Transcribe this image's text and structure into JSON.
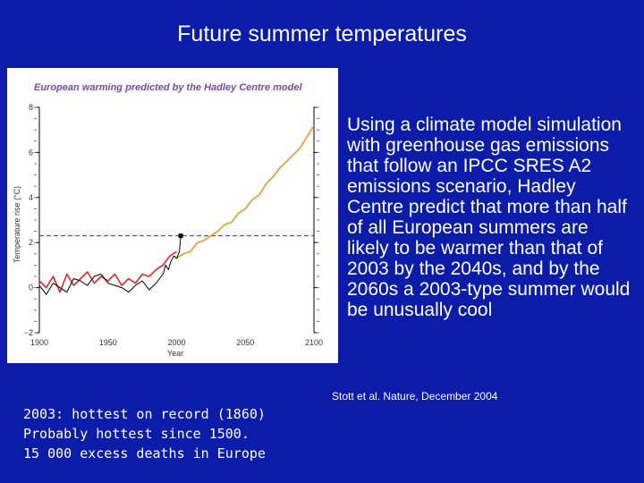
{
  "slide": {
    "title": "Future summer temperatures",
    "body_text": "Using a climate model simulation with greenhouse gas emissions that follow an IPCC SRES A2 emissions scenario, Hadley Centre predict that more than half of all European summers are likely to be warmer than that of 2003 by the 2040s, and by the 2060s a 2003-type summer would be unusually cool",
    "citation": "Stott et al. Nature, December 2004",
    "facts": [
      "2003: hottest on record (1860)",
      "Probably hottest since 1500.",
      "15 000 excess deaths in Europe"
    ]
  },
  "chart_data": {
    "type": "line",
    "title": "European warming predicted by the Hadley Centre model",
    "xlabel": "Year",
    "ylabel": "Temperature rise (°C)",
    "xlim": [
      1900,
      2100
    ],
    "ylim": [
      -2,
      8
    ],
    "x_ticks": [
      1900,
      1950,
      2000,
      2050,
      2100
    ],
    "x_tick_labels": [
      "1900",
      "1950",
      "2000",
      "2050",
      "2100"
    ],
    "y_ticks": [
      -2,
      0,
      2,
      4,
      6,
      8
    ],
    "y_tick_labels": [
      "−2",
      "0",
      "2",
      "4",
      "6",
      "8"
    ],
    "grid": false,
    "reference_line": {
      "y": 2.3
    },
    "highlight_point": {
      "x": 2003,
      "y": 2.3
    },
    "colors": {
      "observed": "#000000",
      "model_historical": "#e3262b",
      "model_future": "#e8982e",
      "title": "#7a4a9a"
    },
    "series": [
      {
        "key": "observed",
        "x": [
          1900,
          1905,
          1910,
          1915,
          1920,
          1925,
          1930,
          1935,
          1940,
          1945,
          1950,
          1955,
          1960,
          1965,
          1970,
          1975,
          1980,
          1985,
          1990,
          1992,
          1994,
          1996,
          1998,
          2000,
          2002,
          2003
        ],
        "y": [
          0.1,
          -0.3,
          0.2,
          0.0,
          -0.2,
          0.4,
          0.3,
          0.1,
          0.5,
          0.6,
          0.2,
          0.1,
          0.0,
          -0.2,
          0.1,
          0.3,
          -0.1,
          0.2,
          0.6,
          1.0,
          0.8,
          1.2,
          1.4,
          1.3,
          1.6,
          2.3
        ]
      },
      {
        "key": "model_historical",
        "x": [
          1900,
          1905,
          1910,
          1915,
          1920,
          1925,
          1930,
          1935,
          1940,
          1945,
          1950,
          1955,
          1960,
          1965,
          1970,
          1975,
          1980,
          1985,
          1990,
          1995,
          2000
        ],
        "y": [
          0.3,
          0.0,
          0.5,
          -0.2,
          0.6,
          0.1,
          0.4,
          0.7,
          0.2,
          0.5,
          0.3,
          0.6,
          0.1,
          0.4,
          0.2,
          0.6,
          0.5,
          0.8,
          1.0,
          1.4,
          1.6
        ]
      },
      {
        "key": "model_future",
        "x": [
          2000,
          2005,
          2010,
          2015,
          2020,
          2025,
          2030,
          2035,
          2040,
          2045,
          2050,
          2055,
          2060,
          2065,
          2070,
          2075,
          2080,
          2085,
          2090,
          2095,
          2100
        ],
        "y": [
          1.3,
          1.5,
          1.6,
          2.0,
          2.1,
          2.3,
          2.5,
          2.8,
          2.9,
          3.3,
          3.5,
          3.9,
          4.1,
          4.6,
          4.9,
          5.3,
          5.6,
          5.9,
          6.2,
          6.7,
          7.2
        ]
      }
    ]
  }
}
